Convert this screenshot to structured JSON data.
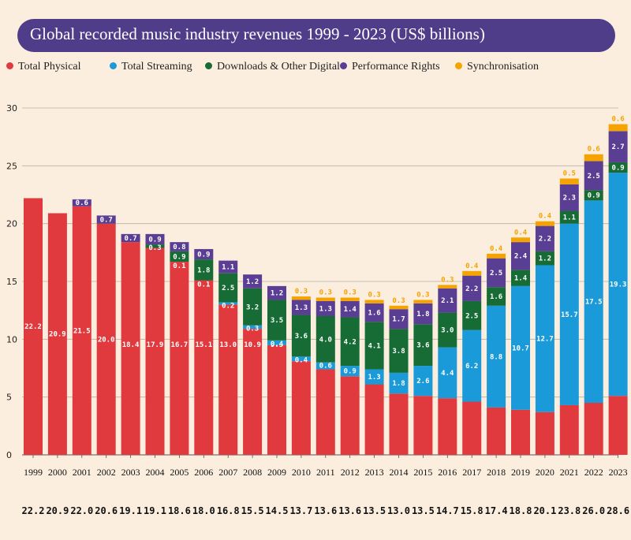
{
  "title": "Global recorded music industry revenues 1999 - 2023 (US$ billions)",
  "legend": [
    {
      "label": "Total Physical",
      "color": "#e03a3e"
    },
    {
      "label": "Total Streaming",
      "color": "#1a9ad9"
    },
    {
      "label": "Downloads & Other Digital",
      "color": "#176b35"
    },
    {
      "label": "Performance Rights",
      "color": "#5a3e94"
    },
    {
      "label": "Synchronisation",
      "color": "#f5a300"
    }
  ],
  "chart_data": {
    "type": "bar",
    "stacked": true,
    "title": "Global recorded music industry revenues 1999 - 2023 (US$ billions)",
    "ylim": [
      0,
      30
    ],
    "yticks": [
      0,
      5,
      10,
      15,
      20,
      25,
      30
    ],
    "grid": true,
    "legend_position": "top",
    "categories": [
      "1999",
      "2000",
      "2001",
      "2002",
      "2003",
      "2004",
      "2005",
      "2006",
      "2007",
      "2008",
      "2009",
      "2010",
      "2011",
      "2012",
      "2013",
      "2014",
      "2015",
      "2016",
      "2017",
      "2018",
      "2019",
      "2020",
      "2021",
      "2022",
      "2023"
    ],
    "totals": [
      "22.2",
      "20.9",
      "22.0",
      "20.6",
      "19.1",
      "19.1",
      "18.6",
      "18.0",
      "16.8",
      "15.5",
      "14.5",
      "13.7",
      "13.6",
      "13.6",
      "13.5",
      "13.0",
      "13.5",
      "14.7",
      "15.8",
      "17.4",
      "18.8",
      "20.1",
      "23.8",
      "26.0",
      "28.6"
    ],
    "series": [
      {
        "name": "Total Physical",
        "color": "#e03a3e",
        "values": [
          22.2,
          20.9,
          21.5,
          20.0,
          18.4,
          17.9,
          16.7,
          15.1,
          13.0,
          10.9,
          9.5,
          8.1,
          7.4,
          6.8,
          6.1,
          5.3,
          5.1,
          4.9,
          4.6,
          4.1,
          3.9,
          3.7,
          4.3,
          4.5,
          5.1
        ]
      },
      {
        "name": "Total Streaming",
        "color": "#1a9ad9",
        "values": [
          null,
          null,
          null,
          null,
          null,
          null,
          null,
          null,
          0.2,
          0.3,
          0.4,
          0.4,
          0.6,
          0.9,
          1.3,
          1.8,
          2.6,
          4.4,
          6.2,
          8.8,
          10.7,
          12.7,
          15.7,
          17.5,
          19.3
        ]
      },
      {
        "name": "Downloads & Other Digital",
        "color": "#176b35",
        "values": [
          null,
          null,
          null,
          null,
          null,
          0.3,
          0.9,
          1.8,
          2.5,
          3.2,
          3.5,
          3.6,
          4.0,
          4.2,
          4.1,
          3.8,
          3.6,
          3.0,
          2.5,
          1.6,
          1.4,
          1.2,
          1.1,
          0.9,
          0.9
        ]
      },
      {
        "name": "Performance Rights",
        "color": "#5a3e94",
        "values": [
          null,
          null,
          0.6,
          0.7,
          0.7,
          0.9,
          0.8,
          0.9,
          1.1,
          1.2,
          1.2,
          1.3,
          1.3,
          1.4,
          1.6,
          1.7,
          1.8,
          2.1,
          2.2,
          2.5,
          2.4,
          2.2,
          2.3,
          2.5,
          2.7
        ]
      },
      {
        "name": "Synchronisation",
        "color": "#f5a300",
        "values": [
          null,
          null,
          null,
          null,
          null,
          null,
          null,
          null,
          null,
          null,
          null,
          0.3,
          0.3,
          0.3,
          0.3,
          0.3,
          0.3,
          0.3,
          0.4,
          0.4,
          0.4,
          0.4,
          0.5,
          0.6,
          0.6
        ]
      }
    ],
    "extra_labels": [
      {
        "year": "2005",
        "text": "0.1"
      },
      {
        "year": "2006",
        "text": "0.1"
      }
    ]
  }
}
